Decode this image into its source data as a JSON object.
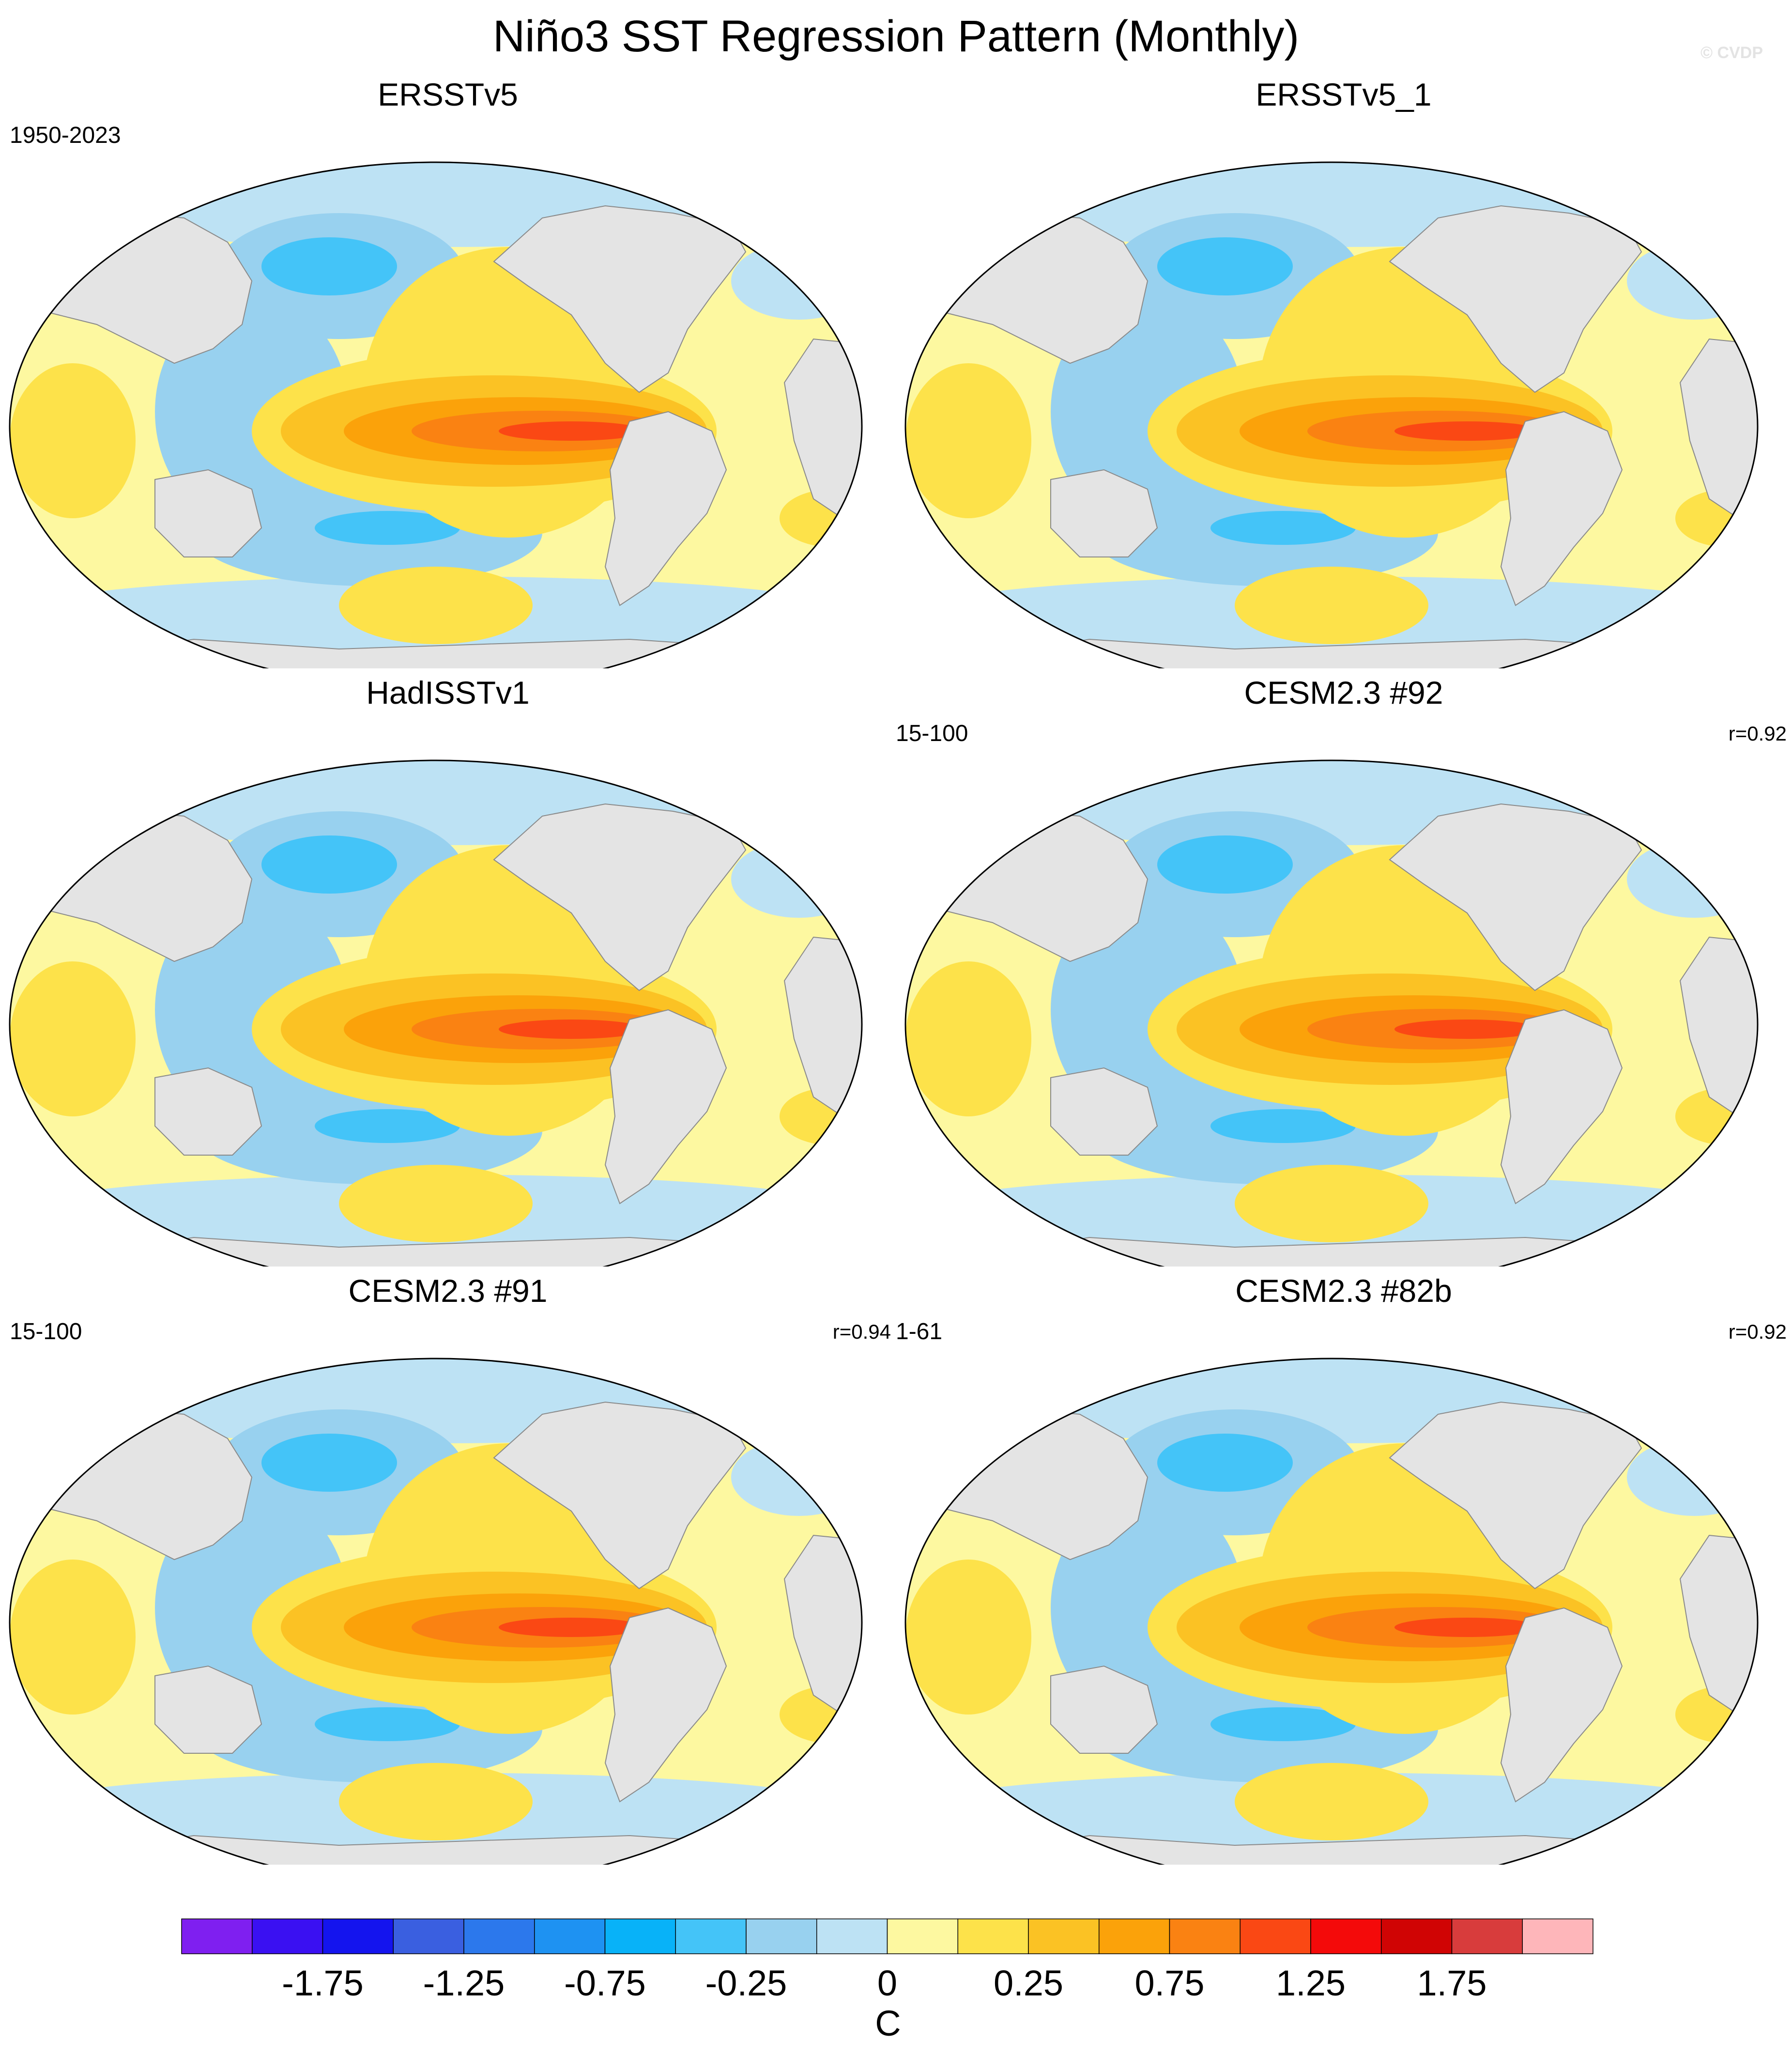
{
  "title": "Niño3 SST Regression Pattern (Monthly)",
  "watermark": "© CVDP",
  "panels": [
    {
      "title": "ERSSTv5",
      "left_label": "1950-2023",
      "right_label": ""
    },
    {
      "title": "ERSSTv5_1",
      "left_label": "",
      "right_label": ""
    },
    {
      "title": "HadISSTv1",
      "left_label": "",
      "right_label": ""
    },
    {
      "title": "CESM2.3 #92",
      "left_label": "15-100",
      "right_label": "r=0.92"
    },
    {
      "title": "CESM2.3 #91",
      "left_label": "15-100",
      "right_label": "r=0.94"
    },
    {
      "title": "CESM2.3 #82b",
      "left_label": "1-61",
      "right_label": "r=0.92"
    }
  ],
  "colorbar": {
    "unit": "C",
    "tick_labels": [
      "-1.75",
      "-1.25",
      "-0.75",
      "-0.25",
      "0",
      "0.25",
      "0.75",
      "1.25",
      "1.75"
    ],
    "colors": [
      "#7f1ff0",
      "#3a10f2",
      "#1414ee",
      "#3a5fe0",
      "#2c78ec",
      "#1e92f2",
      "#08b2f8",
      "#44c4f8",
      "#98d1ef",
      "#bde2f4",
      "#fdf8a0",
      "#fde24a",
      "#fbc224",
      "#fba20a",
      "#fa8212",
      "#fa4814",
      "#f40a0a",
      "#d00404",
      "#d83c3c",
      "#feb6ba"
    ]
  },
  "map_colors": {
    "land": "#e4e4e4",
    "coast": "#8a8a8a",
    "neutral_warm": "#fdf8a0",
    "neutral_cool": "#bde2f4"
  }
}
